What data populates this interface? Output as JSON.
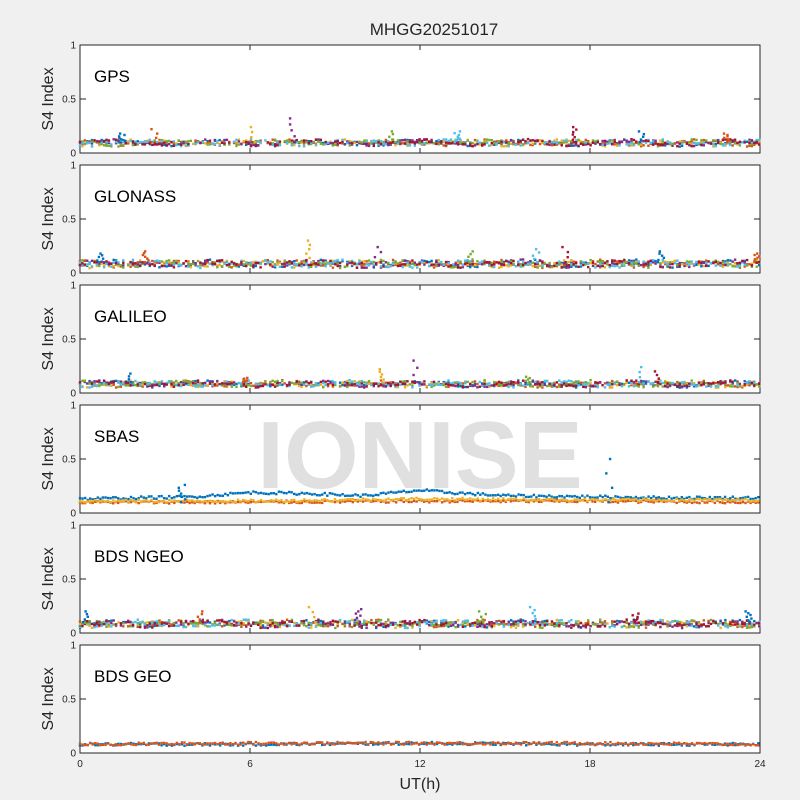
{
  "figure": {
    "title": "MHGG20251017",
    "xlabel": "UT(h)",
    "watermark": "IONISE"
  },
  "chart_data": [
    {
      "type": "scatter",
      "label": "GPS",
      "ylabel": "S4 Index",
      "xlim": [
        0,
        24
      ],
      "ylim": [
        0,
        1
      ],
      "xticks": [
        "0",
        "6",
        "12",
        "18",
        "24"
      ],
      "yticks": [
        "0",
        "0.5",
        "1"
      ],
      "baseline": 0.09,
      "spread": 0.04,
      "colors": [
        "#0072BD",
        "#D95319",
        "#EDB120",
        "#7E2F8E",
        "#77AC30",
        "#4DBEEE",
        "#A2142F"
      ],
      "spikes": [
        [
          1.5,
          0.18
        ],
        [
          2.6,
          0.22
        ],
        [
          6.1,
          0.24
        ],
        [
          7.5,
          0.32
        ],
        [
          11.0,
          0.2
        ],
        [
          13.3,
          0.2
        ],
        [
          17.5,
          0.24
        ],
        [
          19.8,
          0.2
        ],
        [
          22.8,
          0.18
        ]
      ]
    },
    {
      "type": "scatter",
      "label": "GLONASS",
      "ylabel": "S4 Index",
      "xlim": [
        0,
        24
      ],
      "ylim": [
        0,
        1
      ],
      "xticks": [
        "0",
        "6",
        "12",
        "18",
        "24"
      ],
      "yticks": [
        "0",
        "0.5",
        "1"
      ],
      "baseline": 0.08,
      "spread": 0.05,
      "colors": [
        "#0072BD",
        "#D95319",
        "#EDB120",
        "#7E2F8E",
        "#77AC30",
        "#4DBEEE",
        "#A2142F"
      ],
      "spikes": [
        [
          0.7,
          0.18
        ],
        [
          2.3,
          0.2
        ],
        [
          8.1,
          0.3
        ],
        [
          10.5,
          0.24
        ],
        [
          13.8,
          0.2
        ],
        [
          16.1,
          0.22
        ],
        [
          17.1,
          0.24
        ],
        [
          20.5,
          0.2
        ],
        [
          23.9,
          0.18
        ]
      ]
    },
    {
      "type": "scatter",
      "label": "GALILEO",
      "ylabel": "S4 Index",
      "xlim": [
        0,
        24
      ],
      "ylim": [
        0,
        1
      ],
      "xticks": [
        "0",
        "6",
        "12",
        "18",
        "24"
      ],
      "yticks": [
        "0",
        "0.5",
        "1"
      ],
      "baseline": 0.08,
      "spread": 0.04,
      "colors": [
        "#0072BD",
        "#D95319",
        "#EDB120",
        "#7E2F8E",
        "#77AC30",
        "#4DBEEE",
        "#A2142F"
      ],
      "spikes": [
        [
          1.7,
          0.18
        ],
        [
          5.8,
          0.14
        ],
        [
          10.6,
          0.22
        ],
        [
          11.8,
          0.3
        ],
        [
          15.8,
          0.15
        ],
        [
          19.8,
          0.24
        ],
        [
          20.4,
          0.2
        ]
      ]
    },
    {
      "type": "scatter",
      "label": "SBAS",
      "ylabel": "S4 Index",
      "xlim": [
        0,
        24
      ],
      "ylim": [
        0,
        1
      ],
      "xticks": [
        "0",
        "6",
        "12",
        "18",
        "24"
      ],
      "yticks": [
        "0",
        "0.5",
        "1"
      ],
      "tracks": [
        {
          "color": "#0072BD",
          "points": [
            [
              0,
              0.13
            ],
            [
              2,
              0.14
            ],
            [
              4,
              0.15
            ],
            [
              6,
              0.19
            ],
            [
              8,
              0.18
            ],
            [
              10,
              0.16
            ],
            [
              12,
              0.21
            ],
            [
              13,
              0.19
            ],
            [
              15,
              0.16
            ],
            [
              18,
              0.15
            ],
            [
              21,
              0.14
            ],
            [
              24,
              0.14
            ]
          ]
        },
        {
          "color": "#D95319",
          "points": [
            [
              0,
              0.1
            ],
            [
              6,
              0.1
            ],
            [
              12,
              0.11
            ],
            [
              18,
              0.11
            ],
            [
              24,
              0.1
            ]
          ]
        },
        {
          "color": "#EDB120",
          "points": [
            [
              0,
              0.11
            ],
            [
              6,
              0.11
            ],
            [
              12,
              0.13
            ],
            [
              18,
              0.12
            ],
            [
              24,
              0.12
            ]
          ]
        }
      ],
      "spikes": [
        [
          3.6,
          0.26
        ],
        [
          18.7,
          0.5
        ]
      ]
    },
    {
      "type": "scatter",
      "label": "BDS NGEO",
      "ylabel": "S4 Index",
      "xlim": [
        0,
        24
      ],
      "ylim": [
        0,
        1
      ],
      "xticks": [
        "0",
        "6",
        "12",
        "18",
        "24"
      ],
      "yticks": [
        "0",
        "0.5",
        "1"
      ],
      "baseline": 0.08,
      "spread": 0.05,
      "colors": [
        "#0072BD",
        "#D95319",
        "#EDB120",
        "#7E2F8E",
        "#77AC30",
        "#4DBEEE",
        "#A2142F"
      ],
      "spikes": [
        [
          0.2,
          0.2
        ],
        [
          4.2,
          0.2
        ],
        [
          8.2,
          0.24
        ],
        [
          9.8,
          0.22
        ],
        [
          14.2,
          0.2
        ],
        [
          16.0,
          0.24
        ],
        [
          19.6,
          0.18
        ],
        [
          23.6,
          0.2
        ]
      ]
    },
    {
      "type": "scatter",
      "label": "BDS GEO",
      "ylabel": "S4 Index",
      "xlim": [
        0,
        24
      ],
      "ylim": [
        0,
        1
      ],
      "xticks": [
        "0",
        "6",
        "12",
        "18",
        "24"
      ],
      "yticks": [
        "0",
        "0.5",
        "1"
      ],
      "tracks": [
        {
          "color": "#0072BD",
          "points": [
            [
              0,
              0.08
            ],
            [
              6,
              0.08
            ],
            [
              12,
              0.09
            ],
            [
              18,
              0.08
            ],
            [
              24,
              0.08
            ]
          ]
        },
        {
          "color": "#D95319",
          "points": [
            [
              0,
              0.08
            ],
            [
              6,
              0.09
            ],
            [
              12,
              0.09
            ],
            [
              18,
              0.09
            ],
            [
              24,
              0.08
            ]
          ]
        }
      ],
      "spikes": []
    }
  ]
}
